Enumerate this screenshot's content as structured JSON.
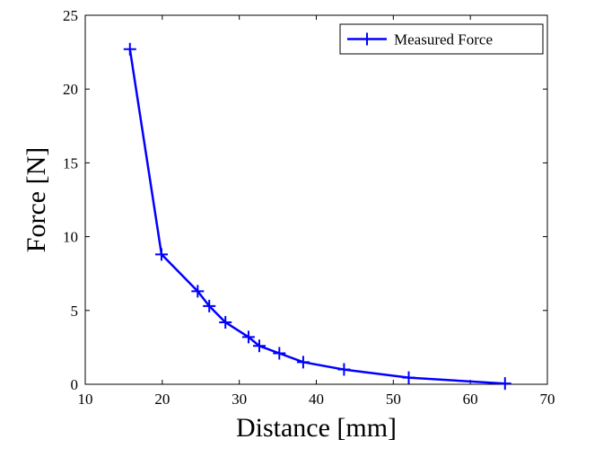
{
  "chart_data": {
    "type": "line",
    "xlabel": "Distance [mm]",
    "ylabel": "Force [N]",
    "xlim": [
      10,
      70
    ],
    "ylim": [
      0,
      25
    ],
    "xticks": [
      10,
      20,
      30,
      40,
      50,
      60,
      70
    ],
    "yticks": [
      0,
      5,
      10,
      15,
      20,
      25
    ],
    "xtick_labels": [
      "10",
      "20",
      "30",
      "40",
      "50",
      "60",
      "70"
    ],
    "ytick_labels": [
      "0",
      "5",
      "10",
      "15",
      "20",
      "25"
    ],
    "grid": false,
    "legend_position": "top-right",
    "series": [
      {
        "name": "Measured Force",
        "color": "#0000ff",
        "marker": "plus",
        "x": [
          15.8,
          19.9,
          24.6,
          26.1,
          28.2,
          31.2,
          32.6,
          35.2,
          38.3,
          43.6,
          52.0,
          64.5
        ],
        "y": [
          22.7,
          8.8,
          6.3,
          5.3,
          4.2,
          3.2,
          2.6,
          2.1,
          1.5,
          1.0,
          0.45,
          0.05
        ]
      }
    ]
  }
}
